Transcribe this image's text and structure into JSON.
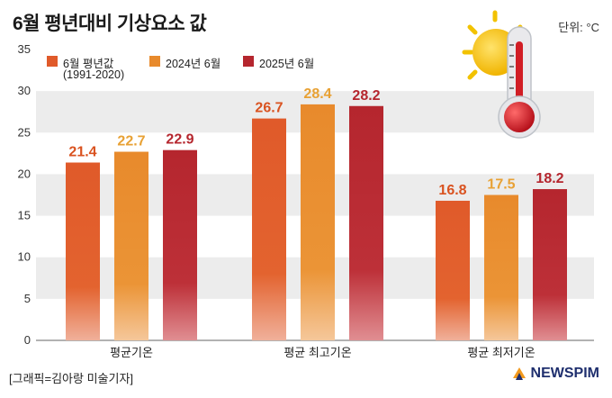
{
  "title": "6월 평년대비 기상요소 값",
  "unit": "단위: °C",
  "credit": "[그래픽=김아랑 미술기자]",
  "logo": "NEWSPIM",
  "chart_data": {
    "type": "bar",
    "categories": [
      "평균기온",
      "평균 최고기온",
      "평균 최저기온"
    ],
    "series": [
      {
        "name": "6월 평년값",
        "note": "(1991-2020)",
        "values": [
          21.4,
          26.7,
          16.8
        ],
        "color": "#e05a2a"
      },
      {
        "name": "2024년 6월",
        "values": [
          22.7,
          28.4,
          17.5
        ],
        "color": "#e88a2c"
      },
      {
        "name": "2025년 6월",
        "values": [
          22.9,
          28.2,
          18.2
        ],
        "color": "#b5262e"
      }
    ],
    "yticks": [
      0,
      5,
      10,
      15,
      20,
      25,
      30,
      35
    ],
    "ylim": [
      0,
      35
    ],
    "label_colors": [
      "#d9521f",
      "#e8a134",
      "#b5262e"
    ]
  }
}
